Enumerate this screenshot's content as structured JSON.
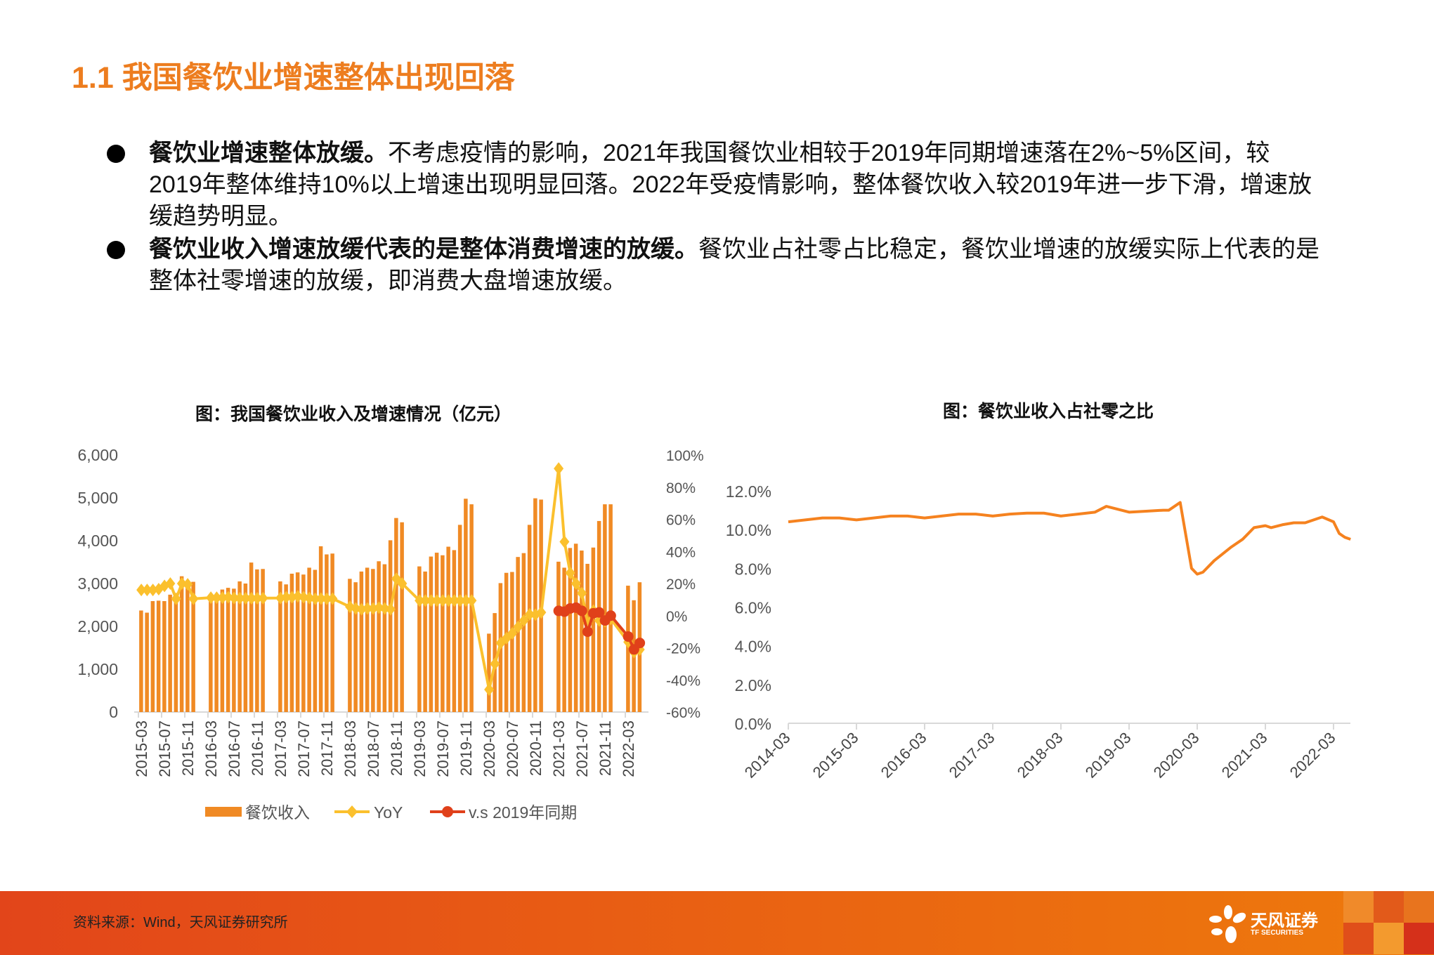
{
  "header": {
    "title": "1.1 我国餐饮业增速整体出现回落"
  },
  "bullets": [
    {
      "bold": "餐饮业增速整体放缓。",
      "text": "不考虑疫情的影响，2021年我国餐饮业相较于2019年同期增速落在2%~5%区间，较2019年整体维持10%以上增速出现明显回落。2022年受疫情影响，整体餐饮收入较2019年进一步下滑，增速放缓趋势明显。"
    },
    {
      "bold": "餐饮业收入增速放缓代表的是整体消费增速的放缓。",
      "text": "餐饮业占社零占比稳定，餐饮业增速的放缓实际上代表的是整体社零增速的放缓，即消费大盘增速放缓。"
    }
  ],
  "footer": {
    "source": "资料来源：Wind，天风证券研究所",
    "logo_cn": "天风证券",
    "logo_en": "TF SECURITIES"
  },
  "colors": {
    "accent": "#ED7D1F",
    "bar": "#F08A24",
    "yoy": "#FBC02D",
    "vs2019": "#E0401A",
    "line": "#F5821F",
    "footer": "#E85C14"
  },
  "chart_data": [
    {
      "type": "bar+line",
      "title": "图：我国餐饮业收入及增速情况（亿元）",
      "years": [
        2015,
        2016,
        2017,
        2018,
        2019,
        2020,
        2021,
        2022
      ],
      "months_note_free": true,
      "x_tick_labels": [
        "2015-03",
        "2015-07",
        "2015-11",
        "2016-03",
        "2016-07",
        "2016-11",
        "2017-03",
        "2017-07",
        "2017-11",
        "2018-03",
        "2018-07",
        "2018-11",
        "2019-03",
        "2019-07",
        "2019-11",
        "2020-03",
        "2020-07",
        "2020-11",
        "2021-03",
        "2021-07",
        "2021-11",
        "2022-03"
      ],
      "y_left": {
        "ylim": [
          0,
          6000
        ],
        "ticks": [
          "0",
          "1,000",
          "2,000",
          "3,000",
          "4,000",
          "5,000",
          "6,000"
        ]
      },
      "y_right": {
        "ylim": [
          -60,
          100
        ],
        "ticks": [
          "-60%",
          "-40%",
          "-20%",
          "0%",
          "20%",
          "40%",
          "60%",
          "80%",
          "100%"
        ]
      },
      "legend": [
        "餐饮收入",
        "YoY",
        "v.s 2019年同期"
      ],
      "legend_position": "bottom",
      "series": [
        {
          "name": "餐饮收入",
          "type": "bar",
          "axis": "left",
          "values": {
            "2015": [
              2370,
              2320,
              2590,
              2600,
              2590,
              2740,
              2760,
              3170,
              3000,
              3040
            ],
            "2016": [
              2620,
              2610,
              2860,
              2900,
              2880,
              3050,
              3000,
              3490,
              3330,
              3340
            ],
            "2017": [
              3050,
              2980,
              3230,
              3260,
              3210,
              3370,
              3320,
              3870,
              3680,
              3700
            ],
            "2018": [
              3110,
              3030,
              3280,
              3370,
              3340,
              3520,
              3450,
              4010,
              4530,
              4430
            ],
            "2019": [
              3400,
              3280,
              3630,
              3720,
              3660,
              3860,
              3780,
              4370,
              4980,
              4850
            ],
            "2020": [
              1830,
              2310,
              3010,
              3250,
              3270,
              3620,
              3710,
              4370,
              4990,
              4960
            ],
            "2021": [
              3510,
              3370,
              3830,
              3930,
              3770,
              3460,
              3840,
              4460,
              4850,
              4850
            ],
            "2022": [
              2950,
              2610,
              3030
            ]
          }
        },
        {
          "name": "YoY",
          "type": "line",
          "axis": "right",
          "values": {
            "2015": [
              16,
              16,
              16,
              16.5,
              18.5,
              20,
              10.5,
              20,
              19.5,
              10.5
            ],
            "2016": [
              11.2,
              11.2,
              11.2,
              11.5,
              11,
              10.9,
              10.8,
              10.8,
              10.8,
              10.9
            ],
            "2017": [
              11,
              11.5,
              11.5,
              12,
              11.5,
              11,
              10.5,
              10.6,
              10.5,
              10.6
            ],
            "2018": [
              5.5,
              4.5,
              4,
              4.5,
              4.5,
              5,
              4.5,
              4,
              23,
              20
            ],
            "2019": [
              9.4,
              9.4,
              9.4,
              9.4,
              9.4,
              9.4,
              9.4,
              9.4,
              9.4,
              9.4
            ],
            "2020": [
              -46,
              -30,
              -17,
              -14,
              -11,
              -7,
              -3,
              0.8,
              0.6,
              2
            ],
            "2021": [
              91.6,
              46,
              26.6,
              20,
              14,
              -4.5,
              3.1,
              -3,
              -3.5,
              -2
            ],
            "2022": [
              -16.4,
              -22.7,
              -21.1
            ]
          }
        },
        {
          "name": "v.s 2019年同期",
          "type": "line",
          "axis": "right",
          "values": {
            "2021": [
              3,
              2.5,
              4.5,
              5,
              3,
              -10,
              1.5,
              2,
              -3,
              0
            ],
            "2022": [
              -13,
              -21,
              -17
            ]
          }
        }
      ]
    },
    {
      "type": "line",
      "title": "图：餐饮业收入占社零之比",
      "x_tick_labels": [
        "2014-03",
        "2015-03",
        "2016-03",
        "2017-03",
        "2018-03",
        "2019-03",
        "2020-03",
        "2021-03",
        "2022-03"
      ],
      "ylim": [
        0,
        12
      ],
      "y_tick_labels": [
        "0.0%",
        "2.0%",
        "4.0%",
        "6.0%",
        "8.0%",
        "10.0%",
        "12.0%"
      ],
      "points": [
        [
          "2014-03",
          10.4
        ],
        [
          "2014-06",
          10.5
        ],
        [
          "2014-09",
          10.6
        ],
        [
          "2014-12",
          10.6
        ],
        [
          "2015-03",
          10.5
        ],
        [
          "2015-06",
          10.6
        ],
        [
          "2015-09",
          10.7
        ],
        [
          "2015-12",
          10.7
        ],
        [
          "2016-03",
          10.6
        ],
        [
          "2016-06",
          10.7
        ],
        [
          "2016-09",
          10.8
        ],
        [
          "2016-12",
          10.8
        ],
        [
          "2017-03",
          10.7
        ],
        [
          "2017-06",
          10.8
        ],
        [
          "2017-09",
          10.85
        ],
        [
          "2017-12",
          10.85
        ],
        [
          "2018-03",
          10.7
        ],
        [
          "2018-06",
          10.8
        ],
        [
          "2018-09",
          10.9
        ],
        [
          "2018-11",
          11.2
        ],
        [
          "2019-03",
          10.9
        ],
        [
          "2019-06",
          10.95
        ],
        [
          "2019-09",
          11.0
        ],
        [
          "2019-10",
          11.0
        ],
        [
          "2019-12",
          11.4
        ],
        [
          "2020-02",
          8.0
        ],
        [
          "2020-03",
          7.7
        ],
        [
          "2020-04",
          7.8
        ],
        [
          "2020-06",
          8.4
        ],
        [
          "2020-09",
          9.1
        ],
        [
          "2020-11",
          9.5
        ],
        [
          "2021-01",
          10.1
        ],
        [
          "2021-03",
          10.2
        ],
        [
          "2021-04",
          10.1
        ],
        [
          "2021-06",
          10.25
        ],
        [
          "2021-08",
          10.35
        ],
        [
          "2021-10",
          10.35
        ],
        [
          "2022-01",
          10.65
        ],
        [
          "2022-03",
          10.4
        ],
        [
          "2022-04",
          9.8
        ],
        [
          "2022-05",
          9.6
        ],
        [
          "2022-06",
          9.5
        ]
      ]
    }
  ]
}
